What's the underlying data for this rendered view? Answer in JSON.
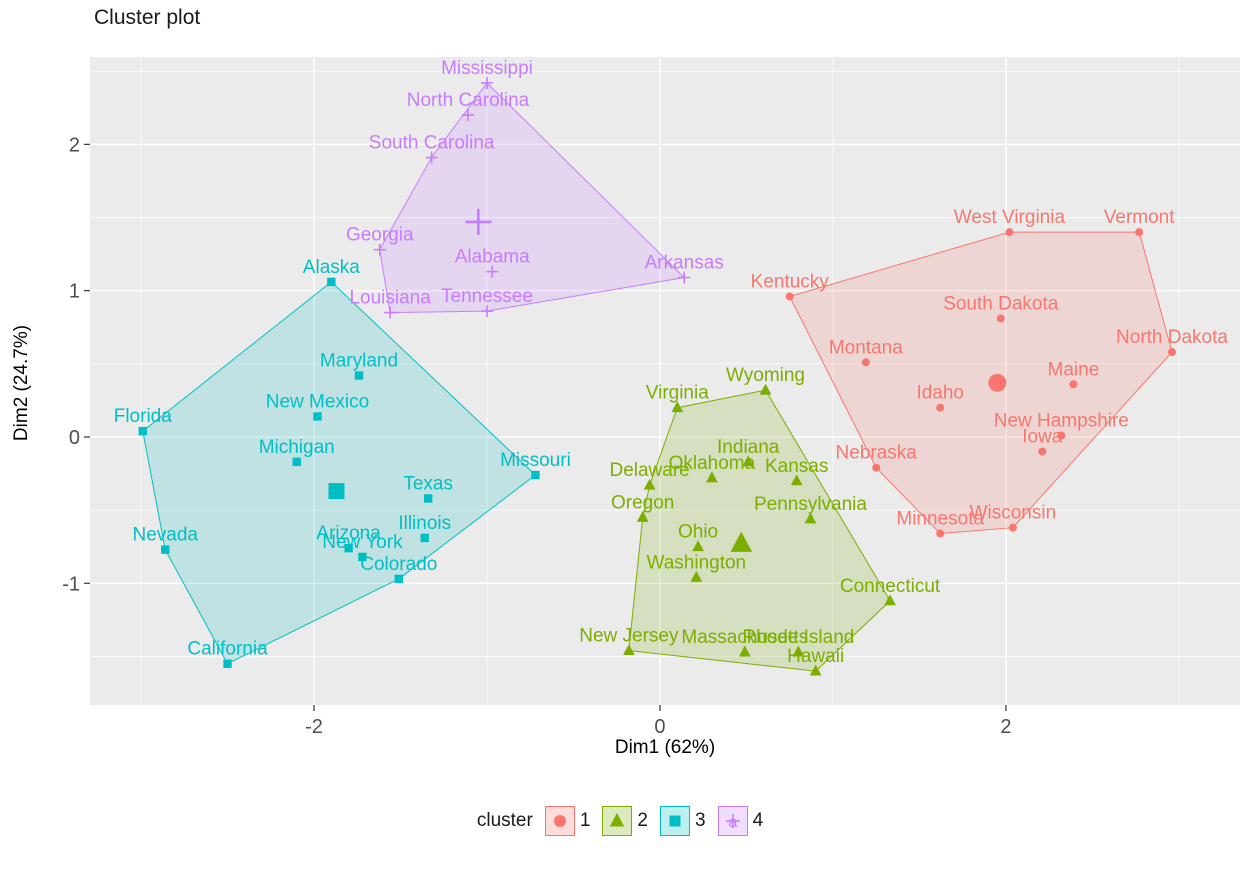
{
  "chart_data": {
    "type": "scatter",
    "title": "Cluster plot",
    "xlabel": "Dim1 (62%)",
    "ylabel": "Dim2 (24.7%)",
    "xlim": [
      -3.295,
      3.353
    ],
    "ylim": [
      -1.832,
      2.597
    ],
    "x_ticks": [
      -2,
      0,
      2
    ],
    "y_ticks": [
      -1,
      0,
      1,
      2
    ],
    "panel_bg": "#EBEBEB",
    "grid_color": "#FFFFFF",
    "axis_text_color": "#4D4D4D",
    "hull_opacity": 0.18,
    "legend_title": "cluster",
    "legend_text_glyph": "a",
    "legend_position": "bottom",
    "clusters": [
      {
        "label": "1",
        "color": "#F8766D",
        "shape": "circle",
        "centroid": {
          "x": 1.95,
          "y": 0.37
        },
        "points": [
          {
            "label": "Kentucky",
            "x": 0.75,
            "y": 0.96
          },
          {
            "label": "West Virginia",
            "x": 2.02,
            "y": 1.4
          },
          {
            "label": "Vermont",
            "x": 2.77,
            "y": 1.4
          },
          {
            "label": "South Dakota",
            "x": 1.97,
            "y": 0.81
          },
          {
            "label": "North Dakota",
            "x": 2.96,
            "y": 0.58
          },
          {
            "label": "Montana",
            "x": 1.19,
            "y": 0.51
          },
          {
            "label": "Maine",
            "x": 2.39,
            "y": 0.36
          },
          {
            "label": "Idaho",
            "x": 1.62,
            "y": 0.2
          },
          {
            "label": "New Hampshire",
            "x": 2.32,
            "y": 0.01
          },
          {
            "label": "Iowa",
            "x": 2.21,
            "y": -0.1
          },
          {
            "label": "Nebraska",
            "x": 1.25,
            "y": -0.21
          },
          {
            "label": "Wisconsin",
            "x": 2.04,
            "y": -0.62
          },
          {
            "label": "Minnesota",
            "x": 1.62,
            "y": -0.66
          }
        ]
      },
      {
        "label": "2",
        "color": "#7CAE00",
        "shape": "triangle",
        "centroid": {
          "x": 0.47,
          "y": -0.73
        },
        "points": [
          {
            "label": "Wyoming",
            "x": 0.61,
            "y": 0.32
          },
          {
            "label": "Virginia",
            "x": 0.1,
            "y": 0.2
          },
          {
            "label": "Indiana",
            "x": 0.51,
            "y": -0.17
          },
          {
            "label": "Oklahoma",
            "x": 0.3,
            "y": -0.28
          },
          {
            "label": "Kansas",
            "x": 0.79,
            "y": -0.3
          },
          {
            "label": "Delaware",
            "x": -0.06,
            "y": -0.33
          },
          {
            "label": "Oregon",
            "x": -0.1,
            "y": -0.55
          },
          {
            "label": "Pennsylvania",
            "x": 0.87,
            "y": -0.56
          },
          {
            "label": "Ohio",
            "x": 0.22,
            "y": -0.75
          },
          {
            "label": "Washington",
            "x": 0.21,
            "y": -0.96
          },
          {
            "label": "Connecticut",
            "x": 1.33,
            "y": -1.12
          },
          {
            "label": "New Jersey",
            "x": -0.18,
            "y": -1.46
          },
          {
            "label": "Massachusetts",
            "x": 0.49,
            "y": -1.47
          },
          {
            "label": "Rhode Island",
            "x": 0.8,
            "y": -1.47
          },
          {
            "label": "Hawaii",
            "x": 0.9,
            "y": -1.6
          }
        ]
      },
      {
        "label": "3",
        "color": "#00BFC4",
        "shape": "square",
        "centroid": {
          "x": -1.87,
          "y": -0.37
        },
        "points": [
          {
            "label": "Alaska",
            "x": -1.9,
            "y": 1.06
          },
          {
            "label": "Maryland",
            "x": -1.74,
            "y": 0.42
          },
          {
            "label": "New Mexico",
            "x": -1.98,
            "y": 0.14
          },
          {
            "label": "Florida",
            "x": -2.99,
            "y": 0.04
          },
          {
            "label": "Michigan",
            "x": -2.1,
            "y": -0.17
          },
          {
            "label": "Missouri",
            "x": -0.72,
            "y": -0.26
          },
          {
            "label": "Texas",
            "x": -1.34,
            "y": -0.42
          },
          {
            "label": "Illinois",
            "x": -1.36,
            "y": -0.69
          },
          {
            "label": "Arizona",
            "x": -1.8,
            "y": -0.76
          },
          {
            "label": "New York",
            "x": -1.72,
            "y": -0.82
          },
          {
            "label": "Nevada",
            "x": -2.86,
            "y": -0.77
          },
          {
            "label": "Colorado",
            "x": -1.51,
            "y": -0.97
          },
          {
            "label": "California",
            "x": -2.5,
            "y": -1.55
          }
        ]
      },
      {
        "label": "4",
        "color": "#C77CFF",
        "shape": "cross",
        "centroid": {
          "x": -1.05,
          "y": 1.47
        },
        "points": [
          {
            "label": "Mississippi",
            "x": -1.0,
            "y": 2.42
          },
          {
            "label": "North Carolina",
            "x": -1.11,
            "y": 2.2
          },
          {
            "label": "South Carolina",
            "x": -1.32,
            "y": 1.91
          },
          {
            "label": "Georgia",
            "x": -1.62,
            "y": 1.28
          },
          {
            "label": "Louisiana",
            "x": -1.56,
            "y": 0.85
          },
          {
            "label": "Tennessee",
            "x": -1.0,
            "y": 0.86
          },
          {
            "label": "Alabama",
            "x": -0.97,
            "y": 1.13
          },
          {
            "label": "Arkansas",
            "x": 0.14,
            "y": 1.09
          }
        ]
      }
    ]
  }
}
